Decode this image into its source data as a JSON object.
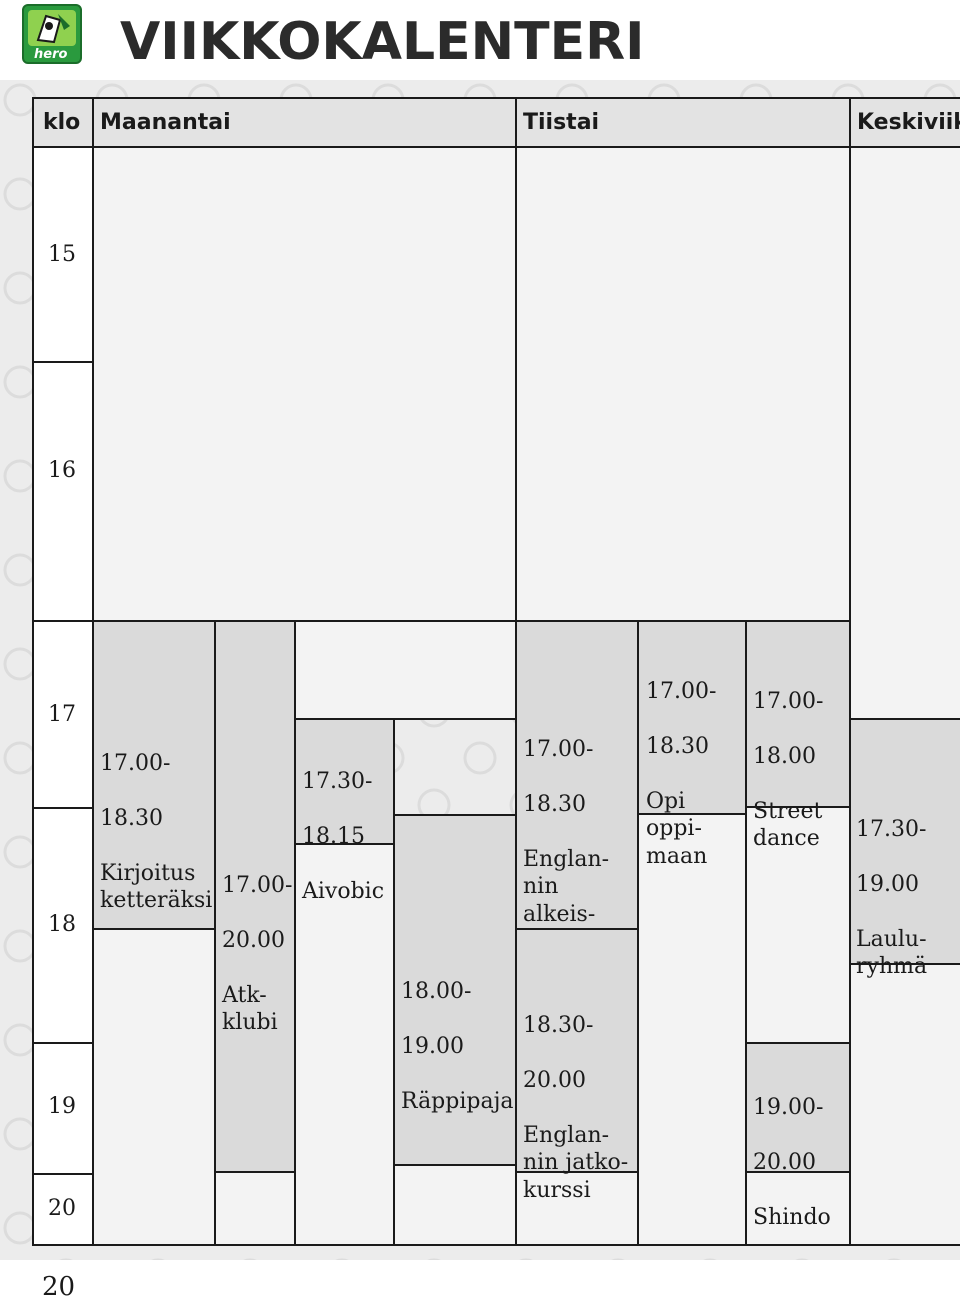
{
  "page": {
    "title": "VIIKKOKALENTERI",
    "page_number": "20",
    "logo_text": "hero"
  },
  "header": {
    "time_col": "klo",
    "days": [
      "Maanantai",
      "Tiistai",
      "Keskiviik"
    ]
  },
  "hours": [
    "15",
    "16",
    "17",
    "18",
    "19",
    "20"
  ],
  "events": [
    {
      "time_start": "17.00-",
      "time_end": "18.30",
      "name": "Kirjoitus\nketteräksi"
    },
    {
      "time_start": "17.00-",
      "time_end": "20.00",
      "name": "Atk-\nklubi"
    },
    {
      "time_start": "17.30-",
      "time_end": "18.15",
      "name": "Aivobic"
    },
    {
      "time_start": "18.00-",
      "time_end": "19.00",
      "name": "Räppipaja"
    },
    {
      "time_start": "17.00-",
      "time_end": "18.30",
      "name": "Englan-\nnin alkeis-\nkurssi"
    },
    {
      "time_start": "18.30-",
      "time_end": "20.00",
      "name": "Englan-\nnin jatko-\nkurssi"
    },
    {
      "time_start": "17.00-",
      "time_end": "18.30",
      "name": "Opi\noppi-\nmaan"
    },
    {
      "time_start": "17.00-",
      "time_end": "18.00",
      "name": "Street\ndance"
    },
    {
      "time_start": "19.00-",
      "time_end": "20.00",
      "name": "Shindo"
    },
    {
      "time_start": "17.30-",
      "time_end": "19.00",
      "name": "Laulu-\nryhmä"
    }
  ],
  "colors": {
    "event_fill": "#dadada",
    "cell_fill": "#f3f3f3",
    "header_fill": "#e3e3e3",
    "logo_green": "#2a9a3e"
  }
}
